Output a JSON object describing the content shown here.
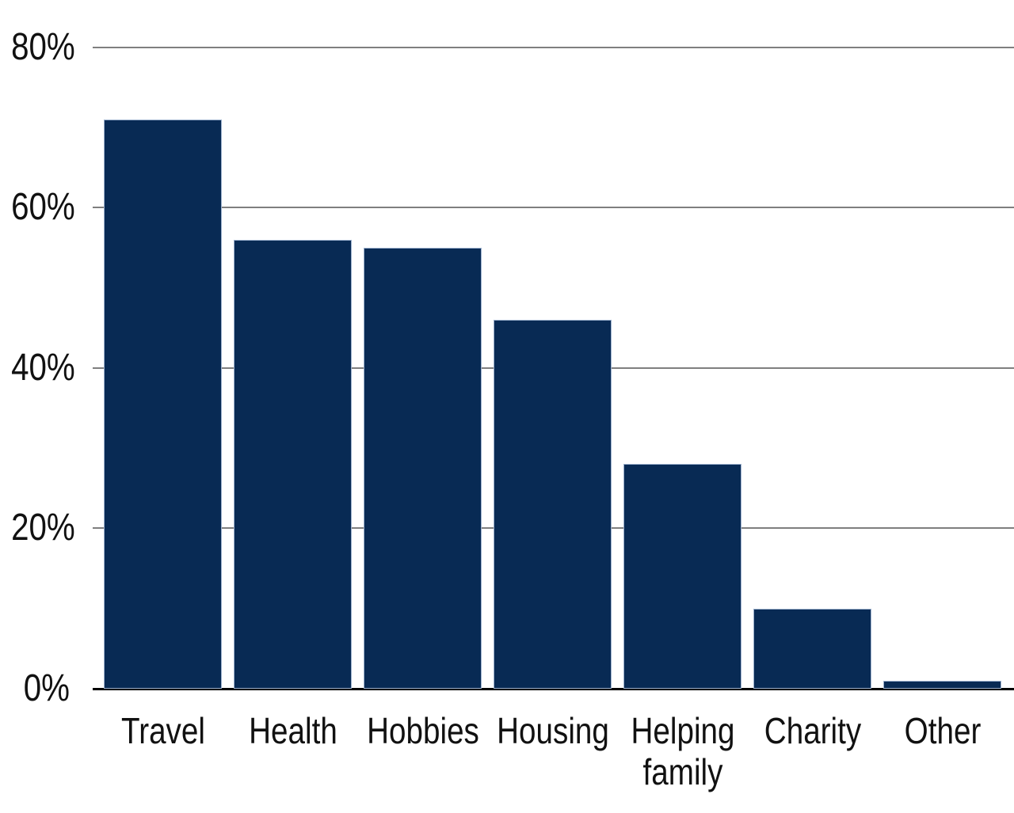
{
  "chart_data": {
    "type": "bar",
    "title": "",
    "xlabel": "",
    "ylabel": "",
    "categories": [
      "Travel",
      "Health",
      "Hobbies",
      "Housing",
      "Helping\nfamily",
      "Charity",
      "Other"
    ],
    "values": [
      71,
      56,
      55,
      46,
      28,
      10,
      1
    ],
    "unit": "%",
    "ylim": [
      0,
      80
    ],
    "yticks": [
      0,
      20,
      40,
      60,
      80
    ],
    "ytick_labels": [
      "0%",
      "20%",
      "40%",
      "60%",
      "80%"
    ],
    "grid": true,
    "legend": false,
    "gridline_orientation": "horizontal",
    "bar_orientation": "vertical"
  },
  "colors": {
    "bar_fill": "#082a54",
    "bar_edge": "#9bb0cd",
    "gridline": "#7f7f7f",
    "axis_line": "#000000",
    "label_text": "#111111",
    "background": "#ffffff"
  }
}
